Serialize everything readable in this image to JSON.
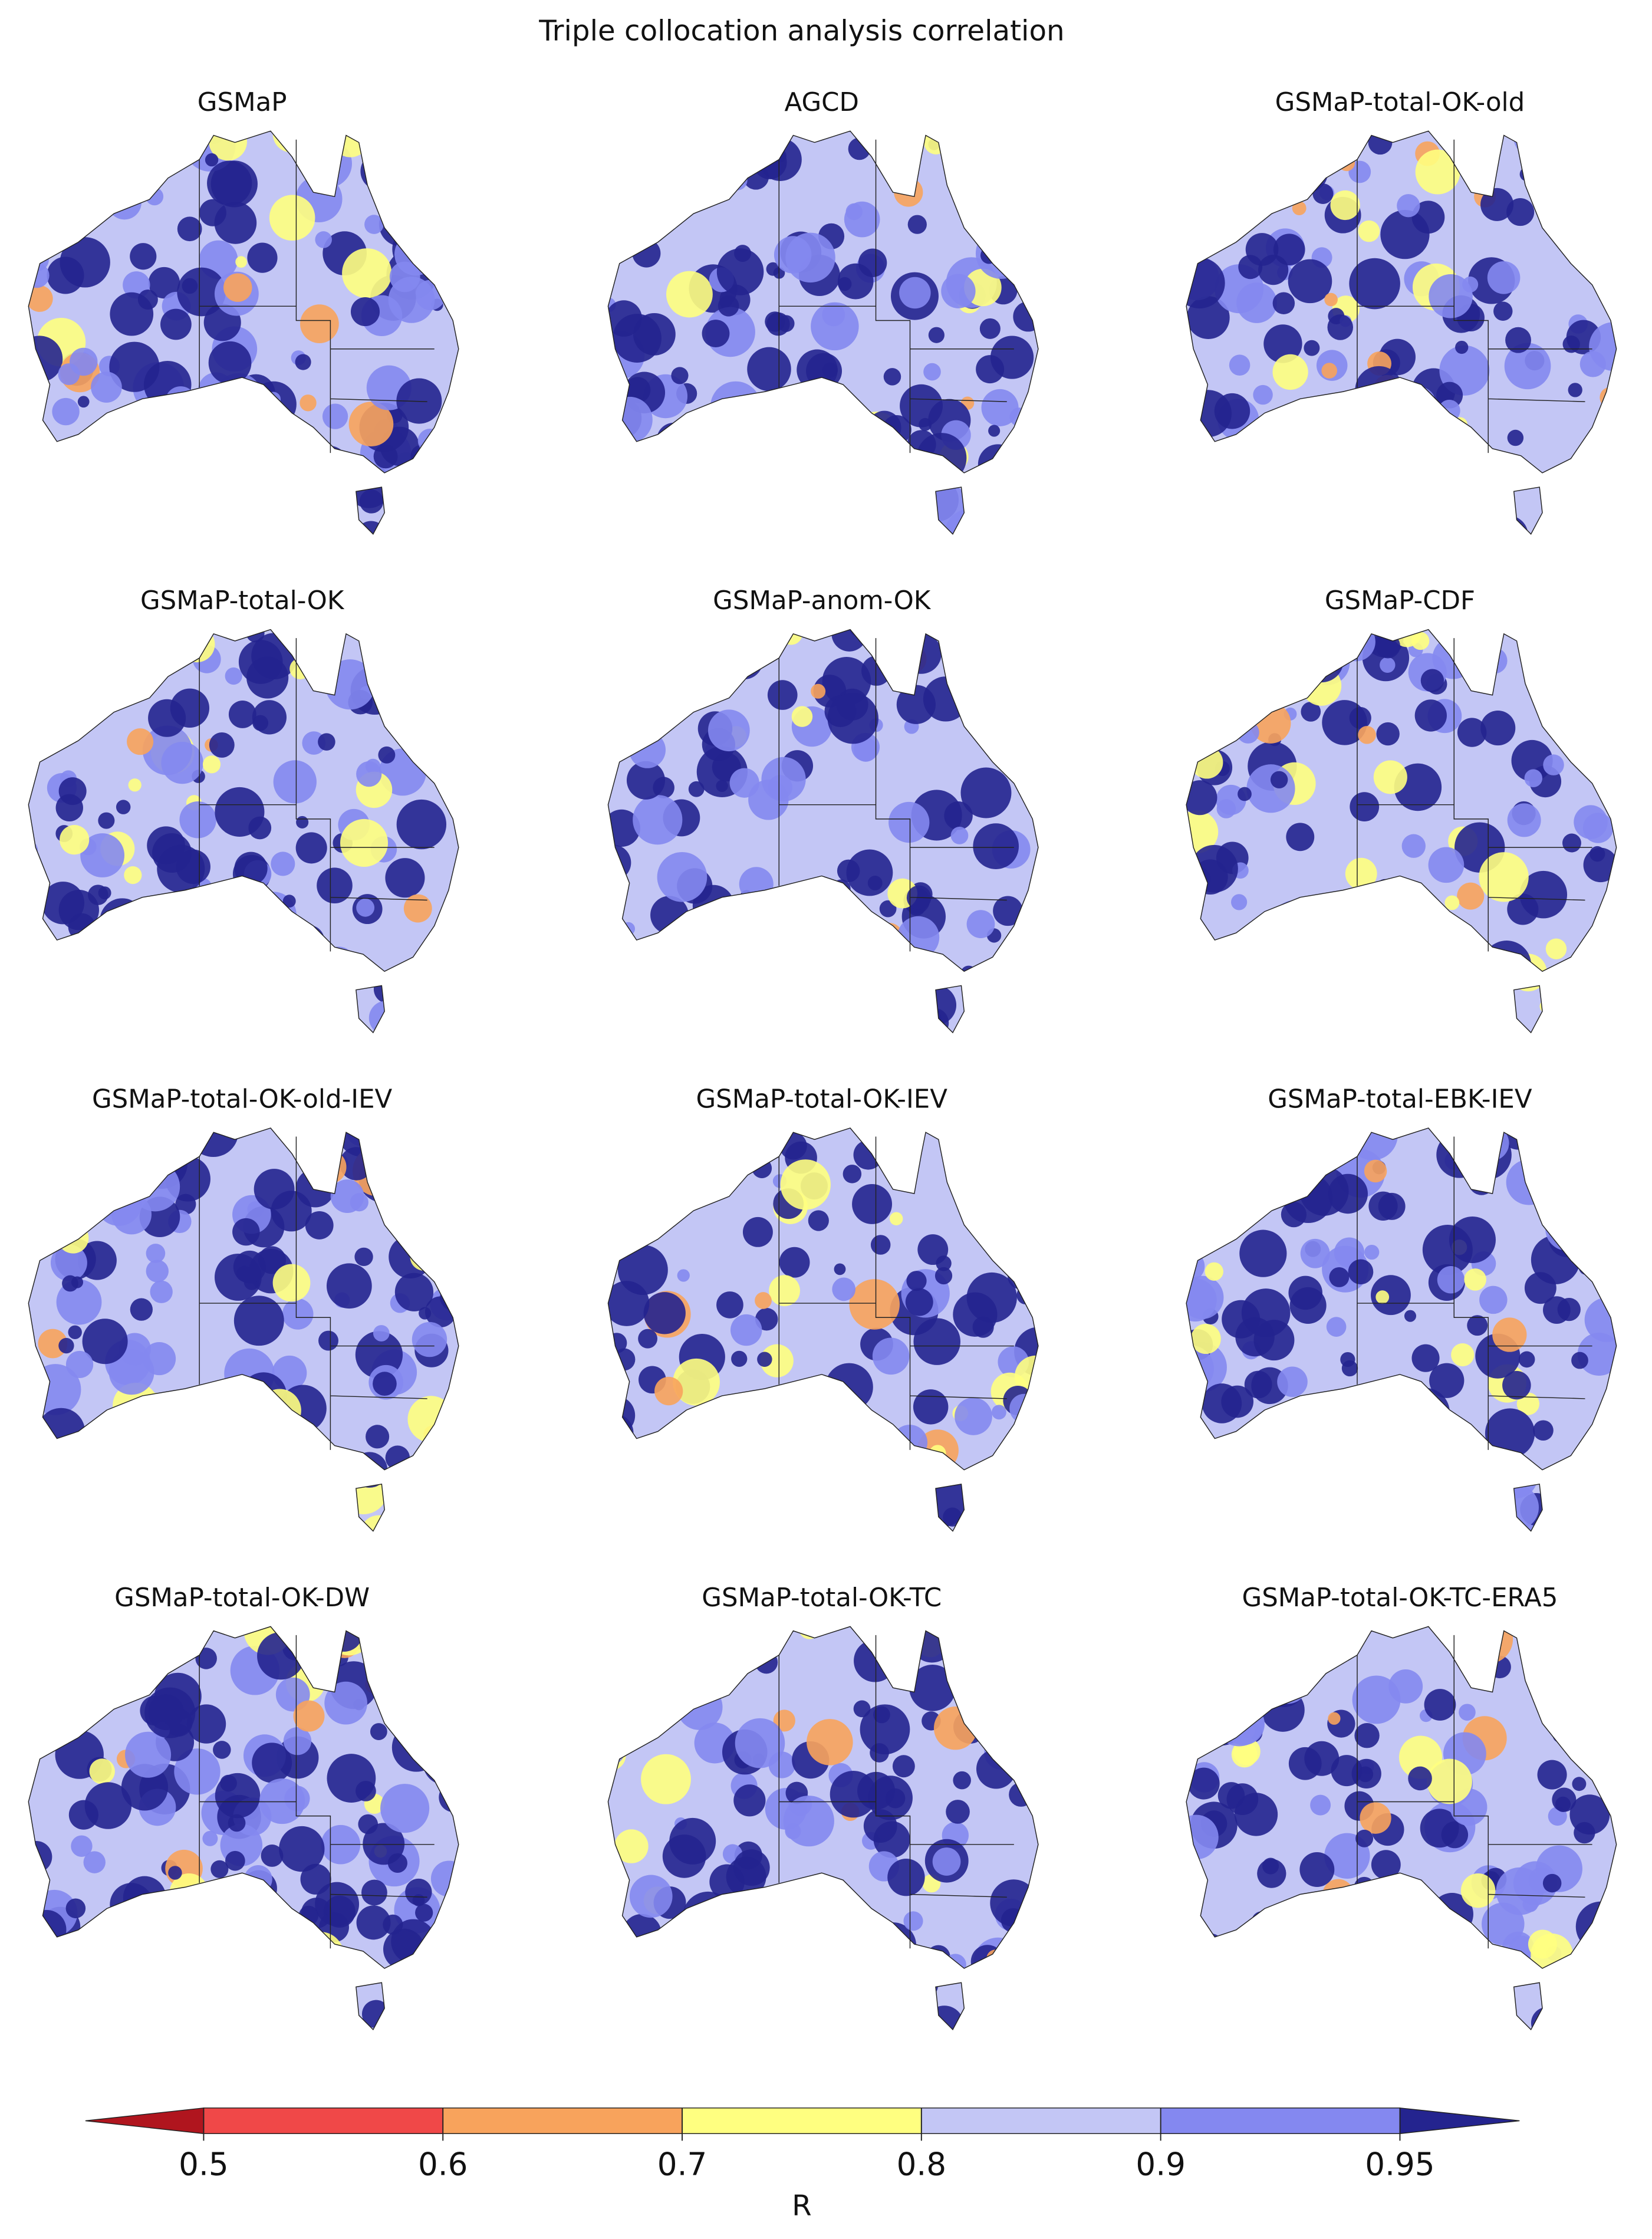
{
  "chart_data": {
    "type": "map",
    "title": "Triple collocation analysis correlation",
    "panels": [
      {
        "title": "GSMaP"
      },
      {
        "title": "AGCD"
      },
      {
        "title": "GSMaP-total-OK-old"
      },
      {
        "title": "GSMaP-total-OK"
      },
      {
        "title": "GSMaP-anom-OK"
      },
      {
        "title": "GSMaP-CDF"
      },
      {
        "title": "GSMaP-total-OK-old-IEV"
      },
      {
        "title": "GSMaP-total-OK-IEV"
      },
      {
        "title": "GSMaP-total-EBK-IEV"
      },
      {
        "title": "GSMaP-total-OK-DW"
      },
      {
        "title": "GSMaP-total-OK-TC"
      },
      {
        "title": "GSMaP-total-OK-TC-ERA5"
      }
    ],
    "colorbar": {
      "label": "R",
      "ticks": [
        0.5,
        0.6,
        0.7,
        0.8,
        0.9,
        0.95
      ],
      "under_color": "#b0151e",
      "colors": [
        "#f04848",
        "#f8a35c",
        "#ffff80",
        "#c3c6f5",
        "#8488f0"
      ],
      "over_color": "#24248f",
      "extend": "both"
    }
  }
}
